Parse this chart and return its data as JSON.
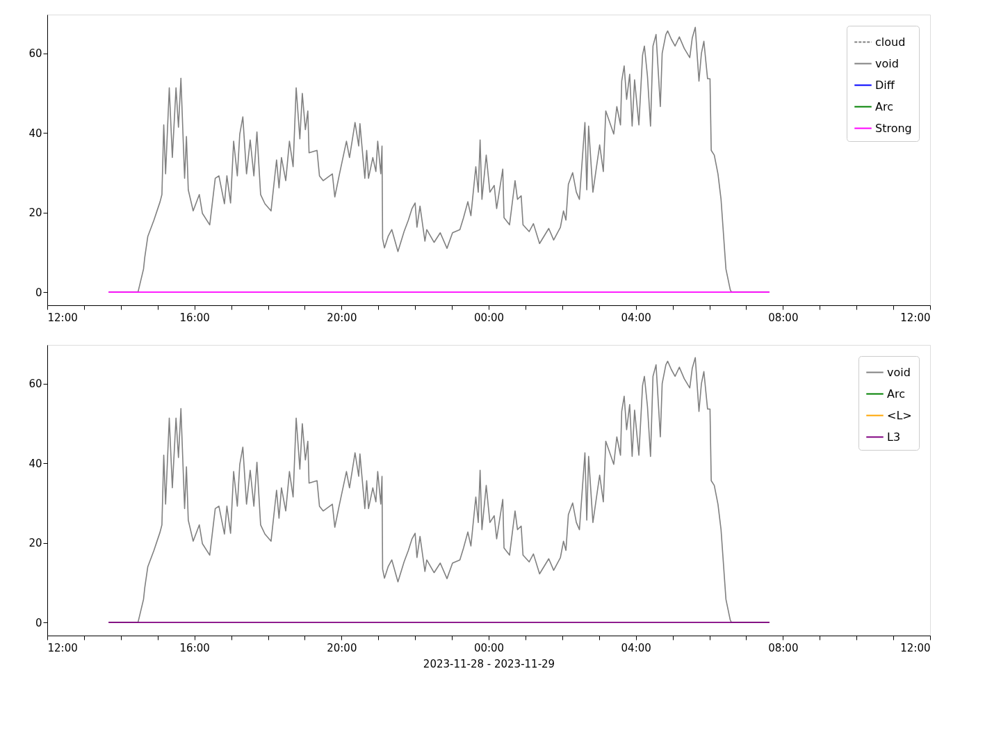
{
  "chart_data": [
    {
      "type": "line",
      "xlim": [
        "2023-11-28T12:00",
        "2023-11-29T12:00"
      ],
      "ylim": [
        -3.3,
        69.7
      ],
      "yticks": [
        0,
        20,
        40,
        60
      ],
      "grid": false,
      "legend": "top right",
      "xticks": [
        {
          "value": "2023-11-28T12:00",
          "label": "12:00"
        },
        {
          "value": "2023-11-28T13:00",
          "label": null
        },
        {
          "value": "2023-11-28T14:00",
          "label": null
        },
        {
          "value": "2023-11-28T15:00",
          "label": null
        },
        {
          "value": "2023-11-28T16:00",
          "label": "16:00"
        },
        {
          "value": "2023-11-28T17:00",
          "label": null
        },
        {
          "value": "2023-11-28T18:00",
          "label": null
        },
        {
          "value": "2023-11-28T19:00",
          "label": null
        },
        {
          "value": "2023-11-28T20:00",
          "label": "20:00"
        },
        {
          "value": "2023-11-28T21:00",
          "label": null
        },
        {
          "value": "2023-11-28T22:00",
          "label": null
        },
        {
          "value": "2023-11-28T23:00",
          "label": null
        },
        {
          "value": "2023-11-29T00:00",
          "label": "00:00"
        },
        {
          "value": "2023-11-29T01:00",
          "label": null
        },
        {
          "value": "2023-11-29T02:00",
          "label": null
        },
        {
          "value": "2023-11-29T03:00",
          "label": null
        },
        {
          "value": "2023-11-29T04:00",
          "label": "04:00"
        },
        {
          "value": "2023-11-29T05:00",
          "label": null
        },
        {
          "value": "2023-11-29T06:00",
          "label": null
        },
        {
          "value": "2023-11-29T07:00",
          "label": null
        },
        {
          "value": "2023-11-29T08:00",
          "label": "08:00"
        },
        {
          "value": "2023-11-29T09:00",
          "label": null
        },
        {
          "value": "2023-11-29T10:00",
          "label": null
        },
        {
          "value": "2023-11-29T11:00",
          "label": null
        },
        {
          "value": "2023-11-29T12:00",
          "label": "12:00"
        }
      ],
      "x": [
        "2023-11-28T13:40",
        "2023-11-28T14:28",
        "2023-11-28T14:37",
        "2023-11-28T14:39",
        "2023-11-28T14:44",
        "2023-11-28T14:54",
        "2023-11-28T15:04",
        "2023-11-28T15:07",
        "2023-11-28T15:10",
        "2023-11-28T15:13",
        "2023-11-28T15:19",
        "2023-11-28T15:24",
        "2023-11-28T15:30",
        "2023-11-28T15:34",
        "2023-11-28T15:38",
        "2023-11-28T15:44",
        "2023-11-28T15:47",
        "2023-11-28T15:50",
        "2023-11-28T15:58",
        "2023-11-28T16:08",
        "2023-11-28T16:13",
        "2023-11-28T16:25",
        "2023-11-28T16:34",
        "2023-11-28T16:40",
        "2023-11-28T16:49",
        "2023-11-28T16:53",
        "2023-11-28T16:59",
        "2023-11-28T17:04",
        "2023-11-28T17:10",
        "2023-11-28T17:14",
        "2023-11-28T17:19",
        "2023-11-28T17:25",
        "2023-11-28T17:31",
        "2023-11-28T17:37",
        "2023-11-28T17:42",
        "2023-11-28T17:48",
        "2023-11-28T17:55",
        "2023-11-28T18:05",
        "2023-11-28T18:14",
        "2023-11-28T18:18",
        "2023-11-28T18:22",
        "2023-11-28T18:29",
        "2023-11-28T18:35",
        "2023-11-28T18:41",
        "2023-11-28T18:46",
        "2023-11-28T18:52",
        "2023-11-28T18:56",
        "2023-11-28T19:01",
        "2023-11-28T19:05",
        "2023-11-28T19:07",
        "2023-11-28T19:20",
        "2023-11-28T19:24",
        "2023-11-28T19:30",
        "2023-11-28T19:45",
        "2023-11-28T19:49",
        "2023-11-28T19:56",
        "2023-11-28T20:08",
        "2023-11-28T20:13",
        "2023-11-28T20:22",
        "2023-11-28T20:28",
        "2023-11-28T20:30",
        "2023-11-28T20:38",
        "2023-11-28T20:41",
        "2023-11-28T20:44",
        "2023-11-28T20:51",
        "2023-11-28T20:56",
        "2023-11-28T20:59",
        "2023-11-28T21:04",
        "2023-11-28T21:06",
        "2023-11-28T21:07",
        "2023-11-28T21:10",
        "2023-11-28T21:16",
        "2023-11-28T21:22",
        "2023-11-28T21:32",
        "2023-11-28T21:42",
        "2023-11-28T21:49",
        "2023-11-28T21:55",
        "2023-11-28T22:00",
        "2023-11-28T22:03",
        "2023-11-28T22:08",
        "2023-11-28T22:16",
        "2023-11-28T22:19",
        "2023-11-28T22:31",
        "2023-11-28T22:41",
        "2023-11-28T22:52",
        "2023-11-28T23:01",
        "2023-11-28T23:13",
        "2023-11-28T23:19",
        "2023-11-28T23:26",
        "2023-11-28T23:31",
        "2023-11-28T23:39",
        "2023-11-28T23:43",
        "2023-11-28T23:46",
        "2023-11-28T23:49",
        "2023-11-28T23:56",
        "2023-11-29T00:02",
        "2023-11-29T00:09",
        "2023-11-29T00:13",
        "2023-11-29T00:23",
        "2023-11-29T00:25",
        "2023-11-29T00:34",
        "2023-11-29T00:43",
        "2023-11-29T00:47",
        "2023-11-29T00:53",
        "2023-11-29T00:56",
        "2023-11-29T01:06",
        "2023-11-29T01:13",
        "2023-11-29T01:23",
        "2023-11-29T01:38",
        "2023-11-29T01:46",
        "2023-11-29T01:57",
        "2023-11-29T02:02",
        "2023-11-29T02:06",
        "2023-11-29T02:10",
        "2023-11-29T02:17",
        "2023-11-29T02:23",
        "2023-11-29T02:28",
        "2023-11-29T02:37",
        "2023-11-29T02:40",
        "2023-11-29T02:43",
        "2023-11-29T02:50",
        "2023-11-29T03:01",
        "2023-11-29T03:07",
        "2023-11-29T03:11",
        "2023-11-29T03:24",
        "2023-11-29T03:29",
        "2023-11-29T03:35",
        "2023-11-29T03:37",
        "2023-11-29T03:41",
        "2023-11-29T03:45",
        "2023-11-29T03:50",
        "2023-11-29T03:54",
        "2023-11-29T03:58",
        "2023-11-29T04:05",
        "2023-11-29T04:11",
        "2023-11-29T04:14",
        "2023-11-29T04:19",
        "2023-11-29T04:24",
        "2023-11-29T04:28",
        "2023-11-29T04:33",
        "2023-11-29T04:40",
        "2023-11-29T04:43",
        "2023-11-29T04:49",
        "2023-11-29T04:52",
        "2023-11-29T04:58",
        "2023-11-29T05:04",
        "2023-11-29T05:11",
        "2023-11-29T05:19",
        "2023-11-29T05:28",
        "2023-11-29T05:32",
        "2023-11-29T05:37",
        "2023-11-29T05:43",
        "2023-11-29T05:47",
        "2023-11-29T05:51",
        "2023-11-29T05:57",
        "2023-11-29T06:01",
        "2023-11-29T06:03",
        "2023-11-29T06:08",
        "2023-11-29T06:14",
        "2023-11-29T06:19",
        "2023-11-29T06:27",
        "2023-11-29T06:34",
        "2023-11-29T06:36",
        "2023-11-29T07:38"
      ],
      "series": [
        {
          "name": "cloud",
          "color": "#808080",
          "line_style": "dashed",
          "values": [
            null,
            null,
            null,
            null,
            null,
            null,
            null,
            null,
            null,
            null,
            null,
            null,
            null,
            null,
            null,
            null,
            null,
            null,
            null,
            null,
            null,
            null,
            null,
            null,
            null,
            null,
            null,
            null,
            null,
            null,
            null,
            null,
            null,
            null,
            null,
            null,
            null,
            null,
            null,
            null,
            null,
            null,
            null,
            null,
            null,
            null,
            null,
            null,
            null,
            null,
            null,
            null,
            null,
            null,
            null,
            null,
            null,
            null,
            null,
            null,
            null,
            null,
            null,
            null,
            null,
            null,
            null,
            null,
            null,
            null,
            null,
            null,
            null,
            null,
            null,
            null,
            null,
            null,
            null,
            null,
            null,
            null,
            null,
            null,
            null,
            null,
            null,
            null,
            null,
            null,
            null,
            null,
            null,
            null,
            null,
            null,
            null,
            null,
            null,
            null,
            null,
            null,
            null,
            null,
            null,
            null,
            null,
            null,
            null,
            null,
            null,
            null,
            null,
            null,
            null,
            null,
            null,
            null,
            null,
            null,
            null,
            null,
            null,
            null,
            null,
            null,
            null,
            null,
            null,
            null,
            null,
            null,
            null,
            null,
            null,
            null,
            null,
            null,
            null,
            null,
            null,
            null,
            null,
            null,
            null,
            null,
            null,
            null,
            null,
            null,
            null,
            null,
            null,
            null,
            null,
            null,
            null,
            null,
            null,
            null,
            null,
            null,
            null,
            null
          ]
        },
        {
          "name": "void",
          "color": "#808080",
          "values": [
            0,
            0,
            5.8,
            8.7,
            14.0,
            18.1,
            22.7,
            24.5,
            42,
            29.7,
            51.3,
            33.8,
            51.3,
            41.4,
            53.7,
            28.6,
            39.1,
            25.7,
            20.4,
            24.5,
            19.8,
            16.9,
            28.6,
            29.2,
            22.2,
            29.2,
            22.4,
            37.9,
            29.2,
            39.7,
            44.0,
            29.7,
            38.2,
            29.2,
            40.2,
            24.5,
            22.2,
            20.4,
            33.2,
            26.2,
            33.8,
            28.0,
            37.9,
            31.5,
            51.3,
            38.5,
            49.9,
            40.8,
            45.5,
            35.0,
            35.6,
            29.2,
            28.0,
            29.7,
            23.9,
            29.2,
            37.9,
            33.8,
            42.6,
            36.7,
            42.3,
            28.6,
            35.6,
            28.6,
            33.8,
            30.3,
            37.9,
            29.7,
            36.7,
            13.4,
            11.1,
            14.0,
            15.7,
            10.2,
            15.2,
            18.1,
            21.0,
            22.4,
            16.3,
            21.6,
            12.8,
            15.7,
            12.5,
            14.9,
            11.0,
            14.9,
            15.7,
            18.7,
            22.7,
            19.2,
            31.5,
            25.1,
            38.2,
            23.3,
            34.4,
            25.1,
            26.8,
            21.0,
            30.9,
            18.7,
            16.9,
            28.0,
            23.3,
            24.2,
            16.9,
            15.2,
            17.2,
            12.2,
            16.0,
            13.1,
            16.3,
            20.4,
            18.1,
            27.1,
            30.0,
            25.1,
            23.3,
            42.6,
            25.7,
            41.7,
            25.1,
            37.0,
            30.3,
            45.5,
            39.7,
            46.6,
            42.0,
            53.0,
            56.8,
            48.4,
            54.7,
            41.7,
            53.3,
            42.0,
            59.5,
            61.8,
            54.2,
            41.7,
            61.8,
            64.7,
            46.6,
            60.0,
            64.7,
            65.6,
            63.5,
            61.8,
            64.1,
            61.2,
            58.9,
            63.8,
            66.5,
            53.0,
            60.0,
            63.0,
            53.6,
            53.6,
            35.6,
            34.4,
            29.7,
            23.3,
            5.8,
            0.6,
            0,
            0
          ]
        },
        {
          "name": "Diff",
          "color": "#0000ff",
          "values": [
            null,
            null,
            null,
            null,
            null,
            null,
            null,
            null,
            null,
            null,
            null,
            null,
            null,
            null,
            null,
            null,
            null,
            null,
            null,
            null,
            null,
            null,
            null,
            null,
            null,
            null,
            null,
            null,
            null,
            null,
            null,
            null,
            null,
            null,
            null,
            null,
            null,
            null,
            null,
            null,
            null,
            null,
            null,
            null,
            null,
            null,
            null,
            null,
            null,
            null,
            null,
            null,
            null,
            null,
            null,
            null,
            null,
            null,
            null,
            null,
            null,
            null,
            null,
            null,
            null,
            null,
            null,
            null,
            null,
            null,
            null,
            null,
            null,
            null,
            null,
            null,
            null,
            null,
            null,
            null,
            null,
            null,
            null,
            null,
            null,
            null,
            null,
            null,
            null,
            null,
            null,
            null,
            null,
            null,
            null,
            null,
            null,
            null,
            null,
            null,
            null,
            null,
            null,
            null,
            null,
            null,
            null,
            null,
            null,
            null,
            null,
            null,
            null,
            null,
            null,
            null,
            null,
            null,
            null,
            null,
            null,
            null,
            null,
            null,
            null,
            null,
            null,
            null,
            null,
            null,
            null,
            null,
            null,
            null,
            null,
            null,
            null,
            null,
            null,
            null,
            null,
            null,
            null,
            null,
            null,
            null,
            null,
            null,
            null,
            null,
            null,
            null,
            null,
            null,
            null,
            null,
            null,
            null,
            null,
            null,
            null,
            null,
            null,
            null
          ]
        },
        {
          "name": "Arc",
          "color": "#008000",
          "values": [
            null,
            null,
            null,
            null,
            null,
            null,
            null,
            null,
            null,
            null,
            null,
            null,
            null,
            null,
            null,
            null,
            null,
            null,
            null,
            null,
            null,
            null,
            null,
            null,
            null,
            null,
            null,
            null,
            null,
            null,
            null,
            null,
            null,
            null,
            null,
            null,
            null,
            null,
            null,
            null,
            null,
            null,
            null,
            null,
            null,
            null,
            null,
            null,
            null,
            null,
            null,
            null,
            null,
            null,
            null,
            null,
            null,
            null,
            null,
            null,
            null,
            null,
            null,
            null,
            null,
            null,
            null,
            null,
            null,
            null,
            null,
            null,
            null,
            null,
            null,
            null,
            null,
            null,
            null,
            null,
            null,
            null,
            null,
            null,
            null,
            null,
            null,
            null,
            null,
            null,
            null,
            null,
            null,
            null,
            null,
            null,
            null,
            null,
            null,
            null,
            null,
            null,
            null,
            null,
            null,
            null,
            null,
            null,
            null,
            null,
            null,
            null,
            null,
            null,
            null,
            null,
            null,
            null,
            null,
            null,
            null,
            null,
            null,
            null,
            null,
            null,
            null,
            null,
            null,
            null,
            null,
            null,
            null,
            null,
            null,
            null,
            null,
            null,
            null,
            null,
            null,
            null,
            null,
            null,
            null,
            null,
            null,
            null,
            null,
            null,
            null,
            null,
            null,
            null,
            null,
            null,
            null,
            null,
            null,
            null,
            null,
            null,
            null,
            null
          ]
        },
        {
          "name": "Strong",
          "color": "#ff00ff",
          "x": [
            "2023-11-28T13:40",
            "2023-11-29T07:38"
          ],
          "values": [
            0,
            0
          ]
        }
      ]
    },
    {
      "type": "line",
      "xlim": [
        "2023-11-28T12:00",
        "2023-11-29T12:00"
      ],
      "ylim": [
        -3.3,
        69.7
      ],
      "yticks": [
        0,
        20,
        40,
        60
      ],
      "grid": false,
      "legend": "top right",
      "xlabel": "2023-11-28 - 2023-11-29",
      "xticks": [
        {
          "value": "2023-11-28T12:00",
          "label": "12:00"
        },
        {
          "value": "2023-11-28T13:00",
          "label": null
        },
        {
          "value": "2023-11-28T14:00",
          "label": null
        },
        {
          "value": "2023-11-28T15:00",
          "label": null
        },
        {
          "value": "2023-11-28T16:00",
          "label": "16:00"
        },
        {
          "value": "2023-11-28T17:00",
          "label": null
        },
        {
          "value": "2023-11-28T18:00",
          "label": null
        },
        {
          "value": "2023-11-28T19:00",
          "label": null
        },
        {
          "value": "2023-11-28T20:00",
          "label": "20:00"
        },
        {
          "value": "2023-11-28T21:00",
          "label": null
        },
        {
          "value": "2023-11-28T22:00",
          "label": null
        },
        {
          "value": "2023-11-28T23:00",
          "label": null
        },
        {
          "value": "2023-11-29T00:00",
          "label": "00:00"
        },
        {
          "value": "2023-11-29T01:00",
          "label": null
        },
        {
          "value": "2023-11-29T02:00",
          "label": null
        },
        {
          "value": "2023-11-29T03:00",
          "label": null
        },
        {
          "value": "2023-11-29T04:00",
          "label": "04:00"
        },
        {
          "value": "2023-11-29T05:00",
          "label": null
        },
        {
          "value": "2023-11-29T06:00",
          "label": null
        },
        {
          "value": "2023-11-29T07:00",
          "label": null
        },
        {
          "value": "2023-11-29T08:00",
          "label": "08:00"
        },
        {
          "value": "2023-11-29T09:00",
          "label": null
        },
        {
          "value": "2023-11-29T10:00",
          "label": null
        },
        {
          "value": "2023-11-29T11:00",
          "label": null
        },
        {
          "value": "2023-11-29T12:00",
          "label": "12:00"
        }
      ],
      "x": [
        "2023-11-28T13:40",
        "2023-11-28T14:28",
        "2023-11-28T14:37",
        "2023-11-28T14:39",
        "2023-11-28T14:44",
        "2023-11-28T14:54",
        "2023-11-28T15:04",
        "2023-11-28T15:07",
        "2023-11-28T15:10",
        "2023-11-28T15:13",
        "2023-11-28T15:19",
        "2023-11-28T15:24",
        "2023-11-28T15:30",
        "2023-11-28T15:34",
        "2023-11-28T15:38",
        "2023-11-28T15:44",
        "2023-11-28T15:47",
        "2023-11-28T15:50",
        "2023-11-28T15:58",
        "2023-11-28T16:08",
        "2023-11-28T16:13",
        "2023-11-28T16:25",
        "2023-11-28T16:34",
        "2023-11-28T16:40",
        "2023-11-28T16:49",
        "2023-11-28T16:53",
        "2023-11-28T16:59",
        "2023-11-28T17:04",
        "2023-11-28T17:10",
        "2023-11-28T17:14",
        "2023-11-28T17:19",
        "2023-11-28T17:25",
        "2023-11-28T17:31",
        "2023-11-28T17:37",
        "2023-11-28T17:42",
        "2023-11-28T17:48",
        "2023-11-28T17:55",
        "2023-11-28T18:05",
        "2023-11-28T18:14",
        "2023-11-28T18:18",
        "2023-11-28T18:22",
        "2023-11-28T18:29",
        "2023-11-28T18:35",
        "2023-11-28T18:41",
        "2023-11-28T18:46",
        "2023-11-28T18:52",
        "2023-11-28T18:56",
        "2023-11-28T19:01",
        "2023-11-28T19:05",
        "2023-11-28T19:07",
        "2023-11-28T19:20",
        "2023-11-28T19:24",
        "2023-11-28T19:30",
        "2023-11-28T19:45",
        "2023-11-28T19:49",
        "2023-11-28T19:56",
        "2023-11-28T20:08",
        "2023-11-28T20:13",
        "2023-11-28T20:22",
        "2023-11-28T20:28",
        "2023-11-28T20:30",
        "2023-11-28T20:38",
        "2023-11-28T20:41",
        "2023-11-28T20:44",
        "2023-11-28T20:51",
        "2023-11-28T20:56",
        "2023-11-28T20:59",
        "2023-11-28T21:04",
        "2023-11-28T21:06",
        "2023-11-28T21:07",
        "2023-11-28T21:10",
        "2023-11-28T21:16",
        "2023-11-28T21:22",
        "2023-11-28T21:32",
        "2023-11-28T21:42",
        "2023-11-28T21:49",
        "2023-11-28T21:55",
        "2023-11-28T22:00",
        "2023-11-28T22:03",
        "2023-11-28T22:08",
        "2023-11-28T22:16",
        "2023-11-28T22:19",
        "2023-11-28T22:31",
        "2023-11-28T22:41",
        "2023-11-28T22:52",
        "2023-11-28T23:01",
        "2023-11-28T23:13",
        "2023-11-28T23:19",
        "2023-11-28T23:26",
        "2023-11-28T23:31",
        "2023-11-28T23:39",
        "2023-11-28T23:43",
        "2023-11-28T23:46",
        "2023-11-28T23:49",
        "2023-11-28T23:56",
        "2023-11-29T00:02",
        "2023-11-29T00:09",
        "2023-11-29T00:13",
        "2023-11-29T00:23",
        "2023-11-29T00:25",
        "2023-11-29T00:34",
        "2023-11-29T00:43",
        "2023-11-29T00:47",
        "2023-11-29T00:53",
        "2023-11-29T00:56",
        "2023-11-29T01:06",
        "2023-11-29T01:13",
        "2023-11-29T01:23",
        "2023-11-29T01:38",
        "2023-11-29T01:46",
        "2023-11-29T01:57",
        "2023-11-29T02:02",
        "2023-11-29T02:06",
        "2023-11-29T02:10",
        "2023-11-29T02:17",
        "2023-11-29T02:23",
        "2023-11-29T02:28",
        "2023-11-29T02:37",
        "2023-11-29T02:40",
        "2023-11-29T02:43",
        "2023-11-29T02:50",
        "2023-11-29T03:01",
        "2023-11-29T03:07",
        "2023-11-29T03:11",
        "2023-11-29T03:24",
        "2023-11-29T03:29",
        "2023-11-29T03:35",
        "2023-11-29T03:37",
        "2023-11-29T03:41",
        "2023-11-29T03:45",
        "2023-11-29T03:50",
        "2023-11-29T03:54",
        "2023-11-29T03:58",
        "2023-11-29T04:05",
        "2023-11-29T04:11",
        "2023-11-29T04:14",
        "2023-11-29T04:19",
        "2023-11-29T04:24",
        "2023-11-29T04:28",
        "2023-11-29T04:33",
        "2023-11-29T04:40",
        "2023-11-29T04:43",
        "2023-11-29T04:49",
        "2023-11-29T04:52",
        "2023-11-29T04:58",
        "2023-11-29T05:04",
        "2023-11-29T05:11",
        "2023-11-29T05:19",
        "2023-11-29T05:28",
        "2023-11-29T05:32",
        "2023-11-29T05:37",
        "2023-11-29T05:43",
        "2023-11-29T05:47",
        "2023-11-29T05:51",
        "2023-11-29T05:57",
        "2023-11-29T06:01",
        "2023-11-29T06:03",
        "2023-11-29T06:08",
        "2023-11-29T06:14",
        "2023-11-29T06:19",
        "2023-11-29T06:27",
        "2023-11-29T06:34",
        "2023-11-29T06:36",
        "2023-11-29T07:38"
      ],
      "series": [
        {
          "name": "void",
          "color": "#808080",
          "values": [
            0,
            0,
            5.8,
            8.7,
            14.0,
            18.1,
            22.7,
            24.5,
            42,
            29.7,
            51.3,
            33.8,
            51.3,
            41.4,
            53.7,
            28.6,
            39.1,
            25.7,
            20.4,
            24.5,
            19.8,
            16.9,
            28.6,
            29.2,
            22.2,
            29.2,
            22.4,
            37.9,
            29.2,
            39.7,
            44.0,
            29.7,
            38.2,
            29.2,
            40.2,
            24.5,
            22.2,
            20.4,
            33.2,
            26.2,
            33.8,
            28.0,
            37.9,
            31.5,
            51.3,
            38.5,
            49.9,
            40.8,
            45.5,
            35.0,
            35.6,
            29.2,
            28.0,
            29.7,
            23.9,
            29.2,
            37.9,
            33.8,
            42.6,
            36.7,
            42.3,
            28.6,
            35.6,
            28.6,
            33.8,
            30.3,
            37.9,
            29.7,
            36.7,
            13.4,
            11.1,
            14.0,
            15.7,
            10.2,
            15.2,
            18.1,
            21.0,
            22.4,
            16.3,
            21.6,
            12.8,
            15.7,
            12.5,
            14.9,
            11.0,
            14.9,
            15.7,
            18.7,
            22.7,
            19.2,
            31.5,
            25.1,
            38.2,
            23.3,
            34.4,
            25.1,
            26.8,
            21.0,
            30.9,
            18.7,
            16.9,
            28.0,
            23.3,
            24.2,
            16.9,
            15.2,
            17.2,
            12.2,
            16.0,
            13.1,
            16.3,
            20.4,
            18.1,
            27.1,
            30.0,
            25.1,
            23.3,
            42.6,
            25.7,
            41.7,
            25.1,
            37.0,
            30.3,
            45.5,
            39.7,
            46.6,
            42.0,
            53.0,
            56.8,
            48.4,
            54.7,
            41.7,
            53.3,
            42.0,
            59.5,
            61.8,
            54.2,
            41.7,
            61.8,
            64.7,
            46.6,
            60.0,
            64.7,
            65.6,
            63.5,
            61.8,
            64.1,
            61.2,
            58.9,
            63.8,
            66.5,
            53.0,
            60.0,
            63.0,
            53.6,
            53.6,
            35.6,
            34.4,
            29.7,
            23.3,
            5.8,
            0.6,
            0,
            0
          ]
        },
        {
          "name": "Arc",
          "color": "#008000",
          "values": [
            null,
            null,
            null,
            null,
            null,
            null,
            null,
            null,
            null,
            null,
            null,
            null,
            null,
            null,
            null,
            null,
            null,
            null,
            null,
            null,
            null,
            null,
            null,
            null,
            null,
            null,
            null,
            null,
            null,
            null,
            null,
            null,
            null,
            null,
            null,
            null,
            null,
            null,
            null,
            null,
            null,
            null,
            null,
            null,
            null,
            null,
            null,
            null,
            null,
            null,
            null,
            null,
            null,
            null,
            null,
            null,
            null,
            null,
            null,
            null,
            null,
            null,
            null,
            null,
            null,
            null,
            null,
            null,
            null,
            null,
            null,
            null,
            null,
            null,
            null,
            null,
            null,
            null,
            null,
            null,
            null,
            null,
            null,
            null,
            null,
            null,
            null,
            null,
            null,
            null,
            null,
            null,
            null,
            null,
            null,
            null,
            null,
            null,
            null,
            null,
            null,
            null,
            null,
            null,
            null,
            null,
            null,
            null,
            null,
            null,
            null,
            null,
            null,
            null,
            null,
            null,
            null,
            null,
            null,
            null,
            null,
            null,
            null,
            null,
            null,
            null,
            null,
            null,
            null,
            null,
            null,
            null,
            null,
            null,
            null,
            null,
            null,
            null,
            null,
            null,
            null,
            null,
            null,
            null,
            null,
            null,
            null,
            null,
            null,
            null,
            null,
            null,
            null,
            null,
            null,
            null,
            null,
            null,
            null,
            null,
            null,
            null,
            null,
            null
          ]
        },
        {
          "name": "<L>",
          "color": "#ffa500",
          "values": [
            null,
            null,
            null,
            null,
            null,
            null,
            null,
            null,
            null,
            null,
            null,
            null,
            null,
            null,
            null,
            null,
            null,
            null,
            null,
            null,
            null,
            null,
            null,
            null,
            null,
            null,
            null,
            null,
            null,
            null,
            null,
            null,
            null,
            null,
            null,
            null,
            null,
            null,
            null,
            null,
            null,
            null,
            null,
            null,
            null,
            null,
            null,
            null,
            null,
            null,
            null,
            null,
            null,
            null,
            null,
            null,
            null,
            null,
            null,
            null,
            null,
            null,
            null,
            null,
            null,
            null,
            null,
            null,
            null,
            null,
            null,
            null,
            null,
            null,
            null,
            null,
            null,
            null,
            null,
            null,
            null,
            null,
            null,
            null,
            null,
            null,
            null,
            null,
            null,
            null,
            null,
            null,
            null,
            null,
            null,
            null,
            null,
            null,
            null,
            null,
            null,
            null,
            null,
            null,
            null,
            null,
            null,
            null,
            null,
            null,
            null,
            null,
            null,
            null,
            null,
            null,
            null,
            null,
            null,
            null,
            null,
            null,
            null,
            null,
            null,
            null,
            null,
            null,
            null,
            null,
            null,
            null,
            null,
            null,
            null,
            null,
            null,
            null,
            null,
            null,
            null,
            null,
            null,
            null,
            null,
            null,
            null,
            null,
            null,
            null,
            null,
            null,
            null,
            null,
            null,
            null,
            null,
            null,
            null,
            null,
            null,
            null,
            null,
            null
          ]
        },
        {
          "name": "L3",
          "color": "#800080",
          "x": [
            "2023-11-28T13:40",
            "2023-11-29T07:38"
          ],
          "values": [
            0,
            0
          ]
        }
      ]
    }
  ]
}
